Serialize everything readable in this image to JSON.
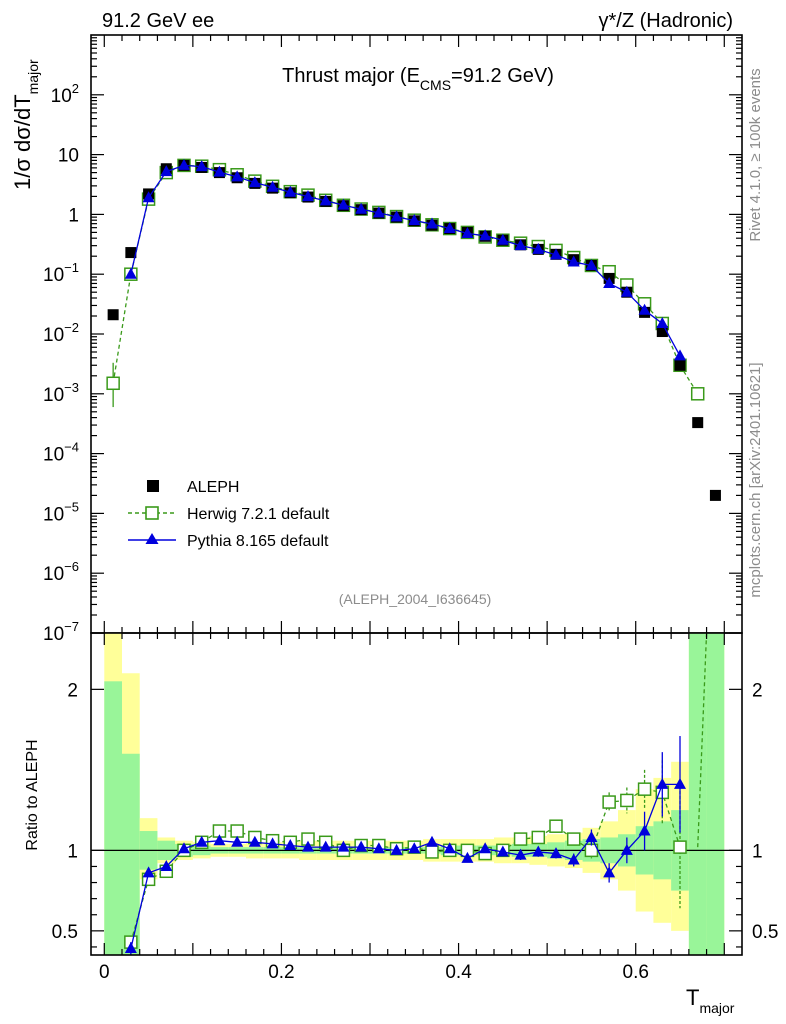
{
  "header": {
    "left": "91.2 GeV ee",
    "right": "γ*/Z (Hadronic)"
  },
  "side": {
    "rivet": "Rivet 4.1.0, ≥ 100k events",
    "mcplots": "mcplots.cern.ch [arXiv:2401.10621]"
  },
  "colors": {
    "data": "#000000",
    "herwig": "#3a9a1a",
    "pythia": "#0000dd",
    "band_inner": "#99f599",
    "band_outer": "#ffff99"
  },
  "chart_data": [
    {
      "type": "scatter",
      "title_main": "Thrust major (E",
      "title_sub": "CMS",
      "title_end": "=91.2 GeV)",
      "ylabel_main": "1/σ  dσ/dT",
      "ylabel_sub": "major",
      "yscale": "log",
      "ylim": [
        1e-07,
        1000
      ],
      "xlim": [
        -0.015,
        0.72
      ],
      "yticks": [
        {
          "v": 100,
          "m": "10",
          "e": "2"
        },
        {
          "v": 10,
          "m": "10",
          "e": ""
        },
        {
          "v": 1,
          "m": "1",
          "e": ""
        },
        {
          "v": 0.1,
          "m": "10",
          "e": "−1"
        },
        {
          "v": 0.01,
          "m": "10",
          "e": "−2"
        },
        {
          "v": 0.001,
          "m": "10",
          "e": "−3"
        },
        {
          "v": 0.0001,
          "m": "10",
          "e": "−4"
        },
        {
          "v": 1e-05,
          "m": "10",
          "e": "−5"
        },
        {
          "v": 1e-06,
          "m": "10",
          "e": "−6"
        },
        {
          "v": 1e-07,
          "m": "10",
          "e": "−7"
        }
      ],
      "annotation": "(ALEPH_2004_I636645)",
      "legend_position": "bottom-left",
      "series": [
        {
          "name": "ALEPH",
          "style": "black-square",
          "x": [
            0.01,
            0.03,
            0.05,
            0.07,
            0.09,
            0.11,
            0.13,
            0.15,
            0.17,
            0.19,
            0.21,
            0.23,
            0.25,
            0.27,
            0.29,
            0.31,
            0.33,
            0.35,
            0.37,
            0.39,
            0.41,
            0.43,
            0.45,
            0.47,
            0.49,
            0.51,
            0.53,
            0.55,
            0.57,
            0.59,
            0.61,
            0.63,
            0.65,
            0.67,
            0.69
          ],
          "values": [
            0.021,
            0.23,
            2.2,
            5.8,
            6.6,
            6.1,
            5.0,
            4.1,
            3.3,
            2.75,
            2.3,
            1.95,
            1.65,
            1.4,
            1.2,
            1.05,
            0.9,
            0.78,
            0.66,
            0.58,
            0.5,
            0.43,
            0.37,
            0.31,
            0.26,
            0.215,
            0.175,
            0.14,
            0.085,
            0.05,
            0.023,
            0.011,
            0.003,
            0.00033,
            2e-05
          ]
        },
        {
          "name": "Herwig 7.2.1 default",
          "style": "green-open-square-dashed",
          "x": [
            0.01,
            0.03,
            0.05,
            0.07,
            0.09,
            0.11,
            0.13,
            0.15,
            0.17,
            0.19,
            0.21,
            0.23,
            0.25,
            0.27,
            0.29,
            0.31,
            0.33,
            0.35,
            0.37,
            0.39,
            0.41,
            0.43,
            0.45,
            0.47,
            0.49,
            0.51,
            0.53,
            0.55,
            0.57,
            0.59,
            0.61,
            0.63,
            0.65,
            0.67
          ],
          "values": [
            0.0015,
            0.1,
            1.8,
            5.0,
            6.6,
            6.4,
            5.6,
            4.6,
            3.6,
            2.95,
            2.4,
            2.1,
            1.72,
            1.42,
            1.23,
            1.08,
            0.92,
            0.8,
            0.67,
            0.58,
            0.5,
            0.42,
            0.37,
            0.33,
            0.29,
            0.25,
            0.19,
            0.14,
            0.11,
            0.066,
            0.032,
            0.015,
            0.003,
            0.001
          ]
        },
        {
          "name": "Pythia 8.165 default",
          "style": "blue-triangle-solid",
          "x": [
            0.03,
            0.05,
            0.07,
            0.09,
            0.11,
            0.13,
            0.15,
            0.17,
            0.19,
            0.21,
            0.23,
            0.25,
            0.27,
            0.29,
            0.31,
            0.33,
            0.35,
            0.37,
            0.39,
            0.41,
            0.43,
            0.45,
            0.47,
            0.49,
            0.51,
            0.53,
            0.55,
            0.57,
            0.59,
            0.61,
            0.63,
            0.65
          ],
          "values": [
            0.1,
            1.9,
            5.2,
            6.6,
            6.3,
            5.1,
            4.25,
            3.4,
            2.85,
            2.35,
            1.98,
            1.68,
            1.43,
            1.22,
            1.06,
            0.91,
            0.79,
            0.69,
            0.58,
            0.48,
            0.44,
            0.37,
            0.3,
            0.26,
            0.21,
            0.16,
            0.14,
            0.07,
            0.05,
            0.025,
            0.015,
            0.0043
          ]
        }
      ]
    },
    {
      "type": "scatter",
      "ylabel": "Ratio to ALEPH",
      "xlabel_main": "T",
      "xlabel_sub": "major",
      "ylim": [
        0.35,
        2.35
      ],
      "xlim": [
        -0.015,
        0.72
      ],
      "xticks": [
        0,
        0.2,
        0.4,
        0.6
      ],
      "xtick_labels": [
        "0",
        "0.2",
        "0.4",
        "0.6"
      ],
      "yticks": [
        0.5,
        1,
        2
      ],
      "ytick_labels": [
        "0.5",
        "1",
        "2"
      ],
      "bands": {
        "edges": [
          0,
          0.02,
          0.04,
          0.06,
          0.08,
          0.1,
          0.12,
          0.14,
          0.16,
          0.18,
          0.2,
          0.22,
          0.24,
          0.26,
          0.28,
          0.3,
          0.32,
          0.34,
          0.36,
          0.38,
          0.4,
          0.42,
          0.44,
          0.46,
          0.48,
          0.5,
          0.52,
          0.54,
          0.56,
          0.58,
          0.6,
          0.62,
          0.64,
          0.66,
          0.68,
          0.7
        ],
        "inner_low": [
          0.35,
          0.35,
          0.88,
          0.94,
          0.96,
          0.97,
          0.98,
          0.98,
          0.98,
          0.98,
          0.98,
          0.98,
          0.98,
          0.98,
          0.98,
          0.98,
          0.98,
          0.98,
          0.98,
          0.97,
          0.97,
          0.97,
          0.97,
          0.96,
          0.96,
          0.95,
          0.94,
          0.93,
          0.92,
          0.9,
          0.85,
          0.82,
          0.75,
          0.35,
          0.35
        ],
        "inner_high": [
          2.05,
          1.6,
          1.12,
          1.06,
          1.04,
          1.03,
          1.02,
          1.02,
          1.02,
          1.02,
          1.02,
          1.02,
          1.02,
          1.02,
          1.02,
          1.02,
          1.02,
          1.02,
          1.02,
          1.03,
          1.03,
          1.03,
          1.03,
          1.04,
          1.04,
          1.05,
          1.06,
          1.07,
          1.08,
          1.1,
          1.15,
          1.18,
          1.25,
          2.35,
          2.35
        ],
        "outer_low": [
          0.35,
          0.35,
          0.82,
          0.92,
          0.94,
          0.95,
          0.96,
          0.96,
          0.95,
          0.95,
          0.95,
          0.94,
          0.94,
          0.94,
          0.94,
          0.94,
          0.94,
          0.94,
          0.93,
          0.93,
          0.93,
          0.93,
          0.92,
          0.92,
          0.91,
          0.9,
          0.89,
          0.86,
          0.82,
          0.75,
          0.62,
          0.55,
          0.5,
          0.35,
          0.35
        ],
        "outer_high": [
          2.35,
          2.1,
          1.2,
          1.08,
          1.06,
          1.05,
          1.04,
          1.04,
          1.05,
          1.05,
          1.05,
          1.06,
          1.06,
          1.06,
          1.06,
          1.06,
          1.06,
          1.06,
          1.07,
          1.07,
          1.07,
          1.07,
          1.08,
          1.08,
          1.09,
          1.1,
          1.11,
          1.14,
          1.18,
          1.25,
          1.38,
          1.45,
          1.55,
          2.35,
          2.35
        ]
      },
      "series": [
        {
          "name": "Herwig 7.2.1 default",
          "x": [
            0.03,
            0.05,
            0.07,
            0.09,
            0.11,
            0.13,
            0.15,
            0.17,
            0.19,
            0.21,
            0.23,
            0.25,
            0.27,
            0.29,
            0.31,
            0.33,
            0.35,
            0.37,
            0.39,
            0.41,
            0.43,
            0.45,
            0.47,
            0.49,
            0.51,
            0.53,
            0.55,
            0.57,
            0.59,
            0.61,
            0.63,
            0.65
          ],
          "values": [
            0.43,
            0.82,
            0.87,
            1.0,
            1.05,
            1.12,
            1.12,
            1.08,
            1.06,
            1.05,
            1.07,
            1.05,
            1.0,
            1.03,
            1.03,
            1.01,
            1.02,
            0.99,
            1.0,
            1.0,
            0.98,
            1.0,
            1.07,
            1.08,
            1.15,
            1.07,
            1.0,
            1.3,
            1.31,
            1.38,
            1.36,
            1.02
          ],
          "err": [
            0.04,
            0.02,
            0.02,
            0.02,
            0.02,
            0.02,
            0.02,
            0.02,
            0.02,
            0.02,
            0.02,
            0.02,
            0.02,
            0.02,
            0.02,
            0.02,
            0.02,
            0.02,
            0.02,
            0.02,
            0.02,
            0.02,
            0.03,
            0.03,
            0.03,
            0.04,
            0.05,
            0.06,
            0.08,
            0.12,
            0.2,
            0.38
          ]
        },
        {
          "name": "Pythia 8.165 default",
          "x": [
            0.03,
            0.05,
            0.07,
            0.09,
            0.11,
            0.13,
            0.15,
            0.17,
            0.19,
            0.21,
            0.23,
            0.25,
            0.27,
            0.29,
            0.31,
            0.33,
            0.35,
            0.37,
            0.39,
            0.41,
            0.43,
            0.45,
            0.47,
            0.49,
            0.51,
            0.53,
            0.55,
            0.57,
            0.59,
            0.61,
            0.63,
            0.65
          ],
          "values": [
            0.39,
            0.86,
            0.9,
            1.01,
            1.05,
            1.06,
            1.05,
            1.05,
            1.04,
            1.03,
            1.02,
            1.02,
            1.02,
            1.02,
            1.01,
            1.0,
            1.01,
            1.05,
            1.01,
            0.95,
            1.01,
            0.99,
            0.97,
            0.99,
            0.98,
            0.94,
            1.08,
            0.86,
            1.0,
            1.12,
            1.41,
            1.41
          ],
          "err": [
            0.04,
            0.02,
            0.02,
            0.02,
            0.02,
            0.02,
            0.02,
            0.02,
            0.02,
            0.02,
            0.02,
            0.02,
            0.02,
            0.02,
            0.02,
            0.02,
            0.02,
            0.02,
            0.02,
            0.02,
            0.02,
            0.02,
            0.03,
            0.03,
            0.03,
            0.04,
            0.05,
            0.06,
            0.08,
            0.12,
            0.2,
            0.3
          ]
        }
      ]
    }
  ]
}
